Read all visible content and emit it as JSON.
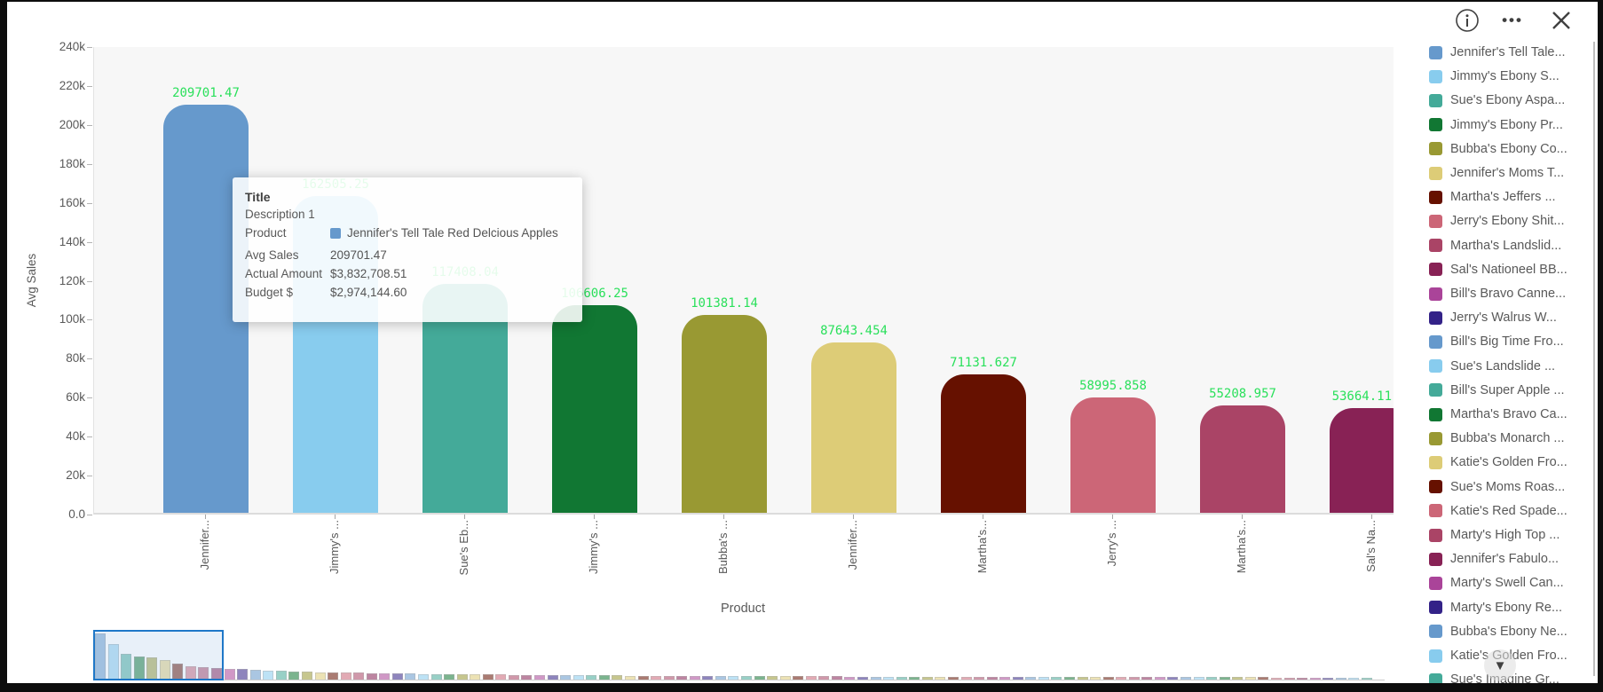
{
  "window": {
    "toolbar": {
      "more_label": "•••"
    }
  },
  "chart_data": {
    "type": "bar",
    "title": "",
    "xlabel": "Product",
    "ylabel": "Avg Sales",
    "ylim": [
      0,
      240000
    ],
    "grid": false,
    "legend_position": "right",
    "y_tick_labels": [
      "240k",
      "220k",
      "200k",
      "180k",
      "160k",
      "140k",
      "120k",
      "100k",
      "80k",
      "60k",
      "40k",
      "20k",
      "0.0"
    ],
    "categories": [
      "Jennifer...",
      "Jimmy's ...",
      "Sue's Eb...",
      "Jimmy's ...",
      "Bubba's ...",
      "Jennifer...",
      "Martha's...",
      "Jerry's ...",
      "Martha's...",
      "Sal's Na..."
    ],
    "values": [
      209701.47,
      162505.25,
      117408.04,
      106606.25,
      101381.14,
      87643.454,
      71131.627,
      58995.858,
      55208.957,
      53664.11
    ],
    "value_labels": [
      "209701.47",
      "162505.25",
      "117408.04",
      "106606.25",
      "101381.14",
      "87643.454",
      "71131.627",
      "58995.858",
      "55208.957",
      "53664.11"
    ],
    "bar_colors": [
      "#6699cc",
      "#88ccee",
      "#44aa99",
      "#117733",
      "#999933",
      "#ddcc77",
      "#661100",
      "#cc6677",
      "#aa4466",
      "#882255"
    ],
    "value_label_color": "#2ae05b",
    "bars_dimmed_by_tooltip": [
      1,
      2
    ]
  },
  "tooltip": {
    "title": "Title",
    "subtitle": "Description 1",
    "rows": [
      {
        "label": "Product",
        "value": "Jennifer's Tell Tale Red Delcious Apples",
        "swatch": "#6699cc"
      },
      {
        "label": "Avg Sales",
        "value": "209701.47"
      },
      {
        "label": "Actual Amount",
        "value": "$3,832,708.51"
      },
      {
        "label": "Budget $",
        "value": "$2,974,144.60"
      }
    ]
  },
  "legend": {
    "scroll_icon": "▼",
    "items": [
      {
        "label": "Jennifer's Tell Tale...",
        "color": "#6699cc"
      },
      {
        "label": "Jimmy's Ebony S...",
        "color": "#88ccee"
      },
      {
        "label": "Sue's Ebony Aspa...",
        "color": "#44aa99"
      },
      {
        "label": "Jimmy's Ebony Pr...",
        "color": "#117733"
      },
      {
        "label": "Bubba's Ebony Co...",
        "color": "#999933"
      },
      {
        "label": "Jennifer's Moms T...",
        "color": "#ddcc77"
      },
      {
        "label": "Martha's Jeffers ...",
        "color": "#661100"
      },
      {
        "label": "Jerry's Ebony Shit...",
        "color": "#cc6677"
      },
      {
        "label": "Martha's Landslid...",
        "color": "#aa4466"
      },
      {
        "label": "Sal's Nationeel BB...",
        "color": "#882255"
      },
      {
        "label": "Bill's Bravo Canne...",
        "color": "#aa4499"
      },
      {
        "label": "Jerry's Walrus W...",
        "color": "#332288"
      },
      {
        "label": "Bill's Big Time Fro...",
        "color": "#6699cc"
      },
      {
        "label": "Sue's Landslide ...",
        "color": "#88ccee"
      },
      {
        "label": "Bill's Super Apple ...",
        "color": "#44aa99"
      },
      {
        "label": "Martha's Bravo Ca...",
        "color": "#117733"
      },
      {
        "label": "Bubba's Monarch ...",
        "color": "#999933"
      },
      {
        "label": "Katie's Golden Fro...",
        "color": "#ddcc77"
      },
      {
        "label": "Sue's Moms Roas...",
        "color": "#661100"
      },
      {
        "label": "Katie's Red Spade...",
        "color": "#cc6677"
      },
      {
        "label": "Marty's High Top ...",
        "color": "#aa4466"
      },
      {
        "label": "Jennifer's Fabulo...",
        "color": "#882255"
      },
      {
        "label": "Marty's Swell Can...",
        "color": "#aa4499"
      },
      {
        "label": "Marty's Ebony Re...",
        "color": "#332288"
      },
      {
        "label": "Bubba's Ebony Ne...",
        "color": "#6699cc"
      },
      {
        "label": "Katie's Golden Fro...",
        "color": "#88ccee"
      },
      {
        "label": "Sue's Imagine Gr...",
        "color": "#44aa99"
      }
    ]
  },
  "navigator": {
    "bar_count": 99,
    "selected_range": [
      0,
      9
    ],
    "palette": [
      "#6699cc",
      "#88ccee",
      "#44aa99",
      "#117733",
      "#999933",
      "#ddcc77",
      "#661100",
      "#cc6677",
      "#aa4466",
      "#882255",
      "#aa4499",
      "#332288"
    ],
    "selection_color": "#1f78c8",
    "max_bar_height": 52
  }
}
